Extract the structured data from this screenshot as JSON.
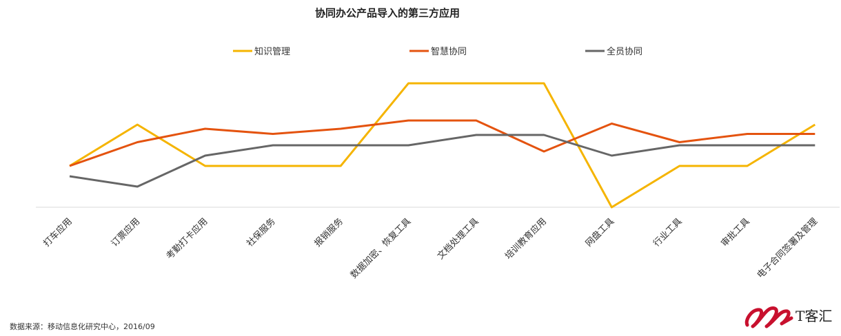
{
  "chart_data": {
    "type": "line",
    "title": "协同办公产品导入的第三方应用",
    "categories": [
      "打车应用",
      "订票应用",
      "考勤打卡应用",
      "社保服务",
      "报销服务",
      "数据加密、恢复工具",
      "文档处理工具",
      "培训教育应用",
      "网盘工具",
      "行业工具",
      "审批工具",
      "电子合同签署及管理"
    ],
    "series": [
      {
        "name": "知识管理",
        "color": "#F5B400",
        "values": [
          4.0,
          8.0,
          4.0,
          4.0,
          4.0,
          12.0,
          12.0,
          12.0,
          0.0,
          4.0,
          4.0,
          8.0
        ]
      },
      {
        "name": "智慧协同",
        "color": "#E4530F",
        "values": [
          4.0,
          6.3,
          7.6,
          7.1,
          7.6,
          8.4,
          8.4,
          5.4,
          8.1,
          6.3,
          7.1,
          7.1
        ]
      },
      {
        "name": "全员协同",
        "color": "#666666",
        "values": [
          3.0,
          2.0,
          5.0,
          6.0,
          6.0,
          6.0,
          7.0,
          7.0,
          5.0,
          6.0,
          6.0,
          6.0
        ]
      }
    ],
    "ylim": [
      0,
      14
    ],
    "grid": false,
    "legend": "top-center"
  },
  "footer": {
    "source": "数据来源：移动信息化研究中心，2016/09"
  },
  "logo": {
    "text": "T客汇"
  }
}
